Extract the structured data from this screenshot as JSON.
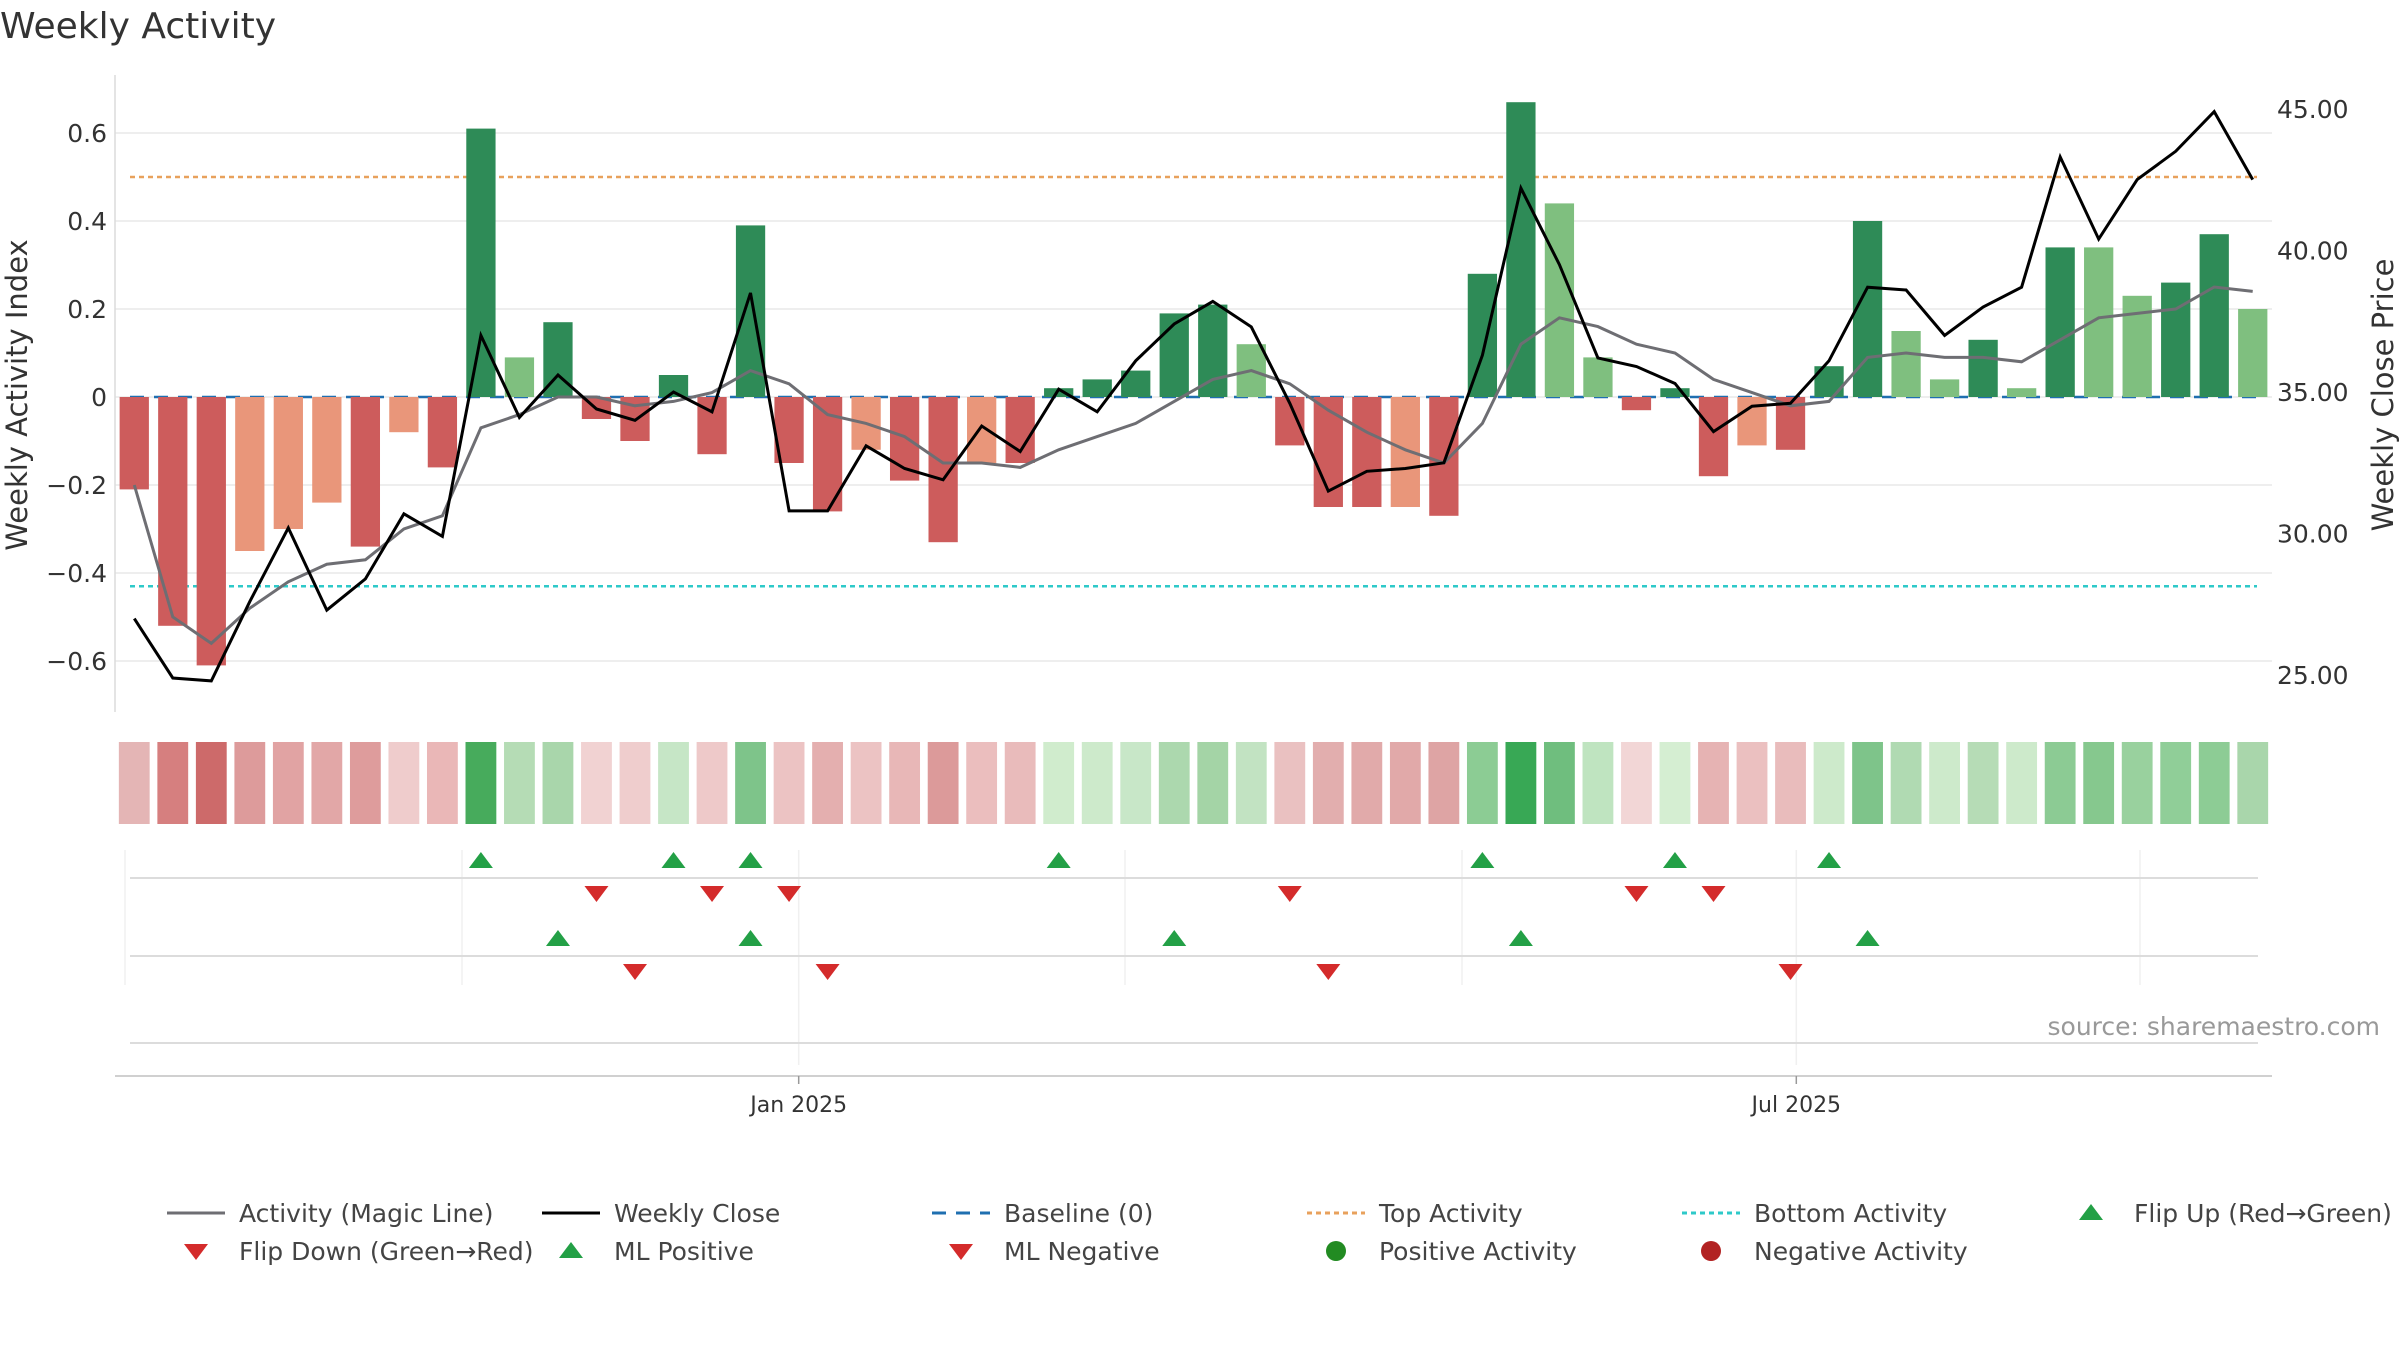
{
  "chart_data": {
    "type": "bar",
    "title": "Weekly Activity",
    "ylabel": "Weekly Activity Index",
    "y2label": "Weekly Close Price",
    "ylim": [
      -0.72,
      0.72
    ],
    "y2lim": [
      23.2,
      46.6
    ],
    "yticks": [
      {
        "v": 0.6,
        "label": "0.6"
      },
      {
        "v": 0.4,
        "label": "0.4"
      },
      {
        "v": 0.2,
        "label": "0.2"
      },
      {
        "v": 0,
        "label": "0"
      },
      {
        "v": -0.2,
        "label": "−0.2"
      },
      {
        "v": -0.4,
        "label": "−0.4"
      },
      {
        "v": -0.6,
        "label": "−0.6"
      }
    ],
    "y2ticks": [
      {
        "v": 45,
        "label": "45.00"
      },
      {
        "v": 40,
        "label": "40.00"
      },
      {
        "v": 35,
        "label": "35.00"
      },
      {
        "v": 30,
        "label": "30.00"
      },
      {
        "v": 25,
        "label": "25.00"
      }
    ],
    "xticks": [
      {
        "week": 17.75,
        "label": "Jan 2025"
      },
      {
        "week": 43.65,
        "label": "Jul 2025"
      }
    ],
    "top_activity": 0.5,
    "bottom_activity": -0.43,
    "baseline": 0,
    "activity": [
      -0.21,
      -0.52,
      -0.61,
      -0.35,
      -0.3,
      -0.24,
      -0.34,
      -0.08,
      -0.16,
      0.61,
      0.09,
      0.17,
      -0.05,
      -0.1,
      0.05,
      -0.13,
      0.39,
      -0.15,
      -0.26,
      -0.12,
      -0.19,
      -0.33,
      -0.15,
      -0.15,
      0.02,
      0.04,
      0.06,
      0.19,
      0.21,
      0.12,
      -0.11,
      -0.25,
      -0.25,
      -0.25,
      -0.27,
      0.28,
      0.67,
      0.44,
      0.09,
      -0.03,
      0.02,
      -0.18,
      -0.11,
      -0.12,
      0.07,
      0.4,
      0.15,
      0.04,
      0.13,
      0.02,
      0.34,
      0.34,
      0.23,
      0.26,
      0.37,
      0.2
    ],
    "bar_colors": [
      "#cd5c5c",
      "#cd5c5c",
      "#cd5c5c",
      "#e9967a",
      "#e9967a",
      "#e9967a",
      "#cd5c5c",
      "#e9967a",
      "#cd5c5c",
      "#2e8b57",
      "#7fbf7f",
      "#2e8b57",
      "#cd5c5c",
      "#cd5c5c",
      "#2e8b57",
      "#cd5c5c",
      "#2e8b57",
      "#cd5c5c",
      "#cd5c5c",
      "#e9967a",
      "#cd5c5c",
      "#cd5c5c",
      "#e9967a",
      "#cd5c5c",
      "#2e8b57",
      "#2e8b57",
      "#2e8b57",
      "#2e8b57",
      "#2e8b57",
      "#7fbf7f",
      "#cd5c5c",
      "#cd5c5c",
      "#cd5c5c",
      "#e9967a",
      "#cd5c5c",
      "#2e8b57",
      "#2e8b57",
      "#7fbf7f",
      "#7fbf7f",
      "#cd5c5c",
      "#2e8b57",
      "#cd5c5c",
      "#e9967a",
      "#cd5c5c",
      "#2e8b57",
      "#2e8b57",
      "#7fbf7f",
      "#7fbf7f",
      "#2e8b57",
      "#7fbf7f",
      "#2e8b57",
      "#7fbf7f",
      "#7fbf7f",
      "#2e8b57",
      "#2e8b57",
      "#7fbf7f"
    ],
    "magic_line": [
      -0.2,
      -0.5,
      -0.56,
      -0.48,
      -0.42,
      -0.38,
      -0.37,
      -0.3,
      -0.27,
      -0.07,
      -0.04,
      0.0,
      0.0,
      -0.02,
      -0.01,
      0.01,
      0.06,
      0.03,
      -0.04,
      -0.06,
      -0.09,
      -0.15,
      -0.15,
      -0.16,
      -0.12,
      -0.09,
      -0.06,
      -0.01,
      0.04,
      0.06,
      0.03,
      -0.03,
      -0.08,
      -0.12,
      -0.15,
      -0.06,
      0.12,
      0.18,
      0.16,
      0.12,
      0.1,
      0.04,
      0.01,
      -0.02,
      -0.01,
      0.09,
      0.1,
      0.09,
      0.09,
      0.08,
      0.13,
      0.18,
      0.19,
      0.2,
      0.25,
      0.24
    ],
    "weekly_close": [
      27.0,
      24.9,
      24.8,
      27.6,
      30.2,
      27.3,
      28.4,
      30.7,
      29.9,
      37.0,
      34.1,
      35.6,
      34.4,
      34.0,
      35.0,
      34.3,
      38.5,
      30.8,
      30.8,
      33.1,
      32.3,
      31.9,
      33.8,
      32.9,
      35.1,
      34.3,
      36.1,
      37.4,
      38.2,
      37.3,
      34.6,
      31.5,
      32.2,
      32.3,
      32.5,
      36.3,
      42.2,
      39.5,
      36.2,
      35.9,
      35.3,
      33.6,
      34.5,
      34.6,
      36.1,
      38.7,
      38.6,
      37.0,
      38.0,
      38.7,
      43.3,
      40.4,
      42.5,
      43.5,
      44.9,
      42.5
    ],
    "strip_colors": [
      "#e4b5b5",
      "#d67f7f",
      "#cd6a6a",
      "#dd9b9b",
      "#e1a3a3",
      "#e2a7a7",
      "#de9c9c",
      "#efcccc",
      "#eab7b7",
      "#47ab5c",
      "#b5dcb5",
      "#a9d6ab",
      "#f1d2d2",
      "#efcdcd",
      "#c6e6c6",
      "#eec9c9",
      "#7ec48a",
      "#ecc3c3",
      "#e4afaf",
      "#ecc3c3",
      "#e8b7b7",
      "#dc9a9a",
      "#ebbebe",
      "#e9bbbb",
      "#d0eccd",
      "#cdeacb",
      "#c8e7c8",
      "#acd8ae",
      "#a4d4a6",
      "#c2e3c2",
      "#eac1c1",
      "#e2aeae",
      "#e1aaaa",
      "#e1a9a9",
      "#dea4a4",
      "#8ccc94",
      "#38a855",
      "#6fbe7e",
      "#bfe4c0",
      "#f2d6d6",
      "#d5eed2",
      "#e6b3b3",
      "#ebc0c0",
      "#e9bcbc",
      "#cdeacb",
      "#7ec48a",
      "#b0dab2",
      "#cdeacb",
      "#b6dcb6",
      "#cdeacb",
      "#8ccb94",
      "#86c88e",
      "#99d19e",
      "#90ce98",
      "#8dcc95",
      "#a9d6ab"
    ],
    "signal_rows": [
      {
        "up": [
          9,
          14,
          16,
          24,
          35,
          40,
          44
        ],
        "down": [
          12,
          15,
          17,
          30,
          39,
          41
        ]
      },
      {
        "up": [
          11,
          16,
          27,
          36,
          45
        ],
        "down": [
          13,
          18,
          31,
          43
        ]
      }
    ],
    "legend": [
      {
        "label": "Activity (Magic Line)",
        "kind": "line",
        "color": "#6e6e73",
        "dash": ""
      },
      {
        "label": "Weekly Close",
        "kind": "line",
        "color": "#000000",
        "dash": ""
      },
      {
        "label": "Baseline (0)",
        "kind": "line",
        "color": "#1f6fb0",
        "dash": "14,10"
      },
      {
        "label": "Top Activity",
        "kind": "line",
        "color": "#e8a15c",
        "dash": "5,4"
      },
      {
        "label": "Bottom Activity",
        "kind": "line",
        "color": "#2ec9c9",
        "dash": "5,4"
      },
      {
        "label": "Flip Up (Red→Green)",
        "kind": "tri-up",
        "color": "#23a046"
      },
      {
        "label": "Flip Down (Green→Red)",
        "kind": "tri-down",
        "color": "#d42b2b"
      },
      {
        "label": "ML Positive",
        "kind": "tri-up",
        "color": "#23a046"
      },
      {
        "label": "ML Negative",
        "kind": "tri-down",
        "color": "#d42b2b"
      },
      {
        "label": "Positive Activity",
        "kind": "dot",
        "color": "#228b22"
      },
      {
        "label": "Negative Activity",
        "kind": "dot",
        "color": "#b22222"
      }
    ],
    "source": "source: sharemaestro.com"
  }
}
